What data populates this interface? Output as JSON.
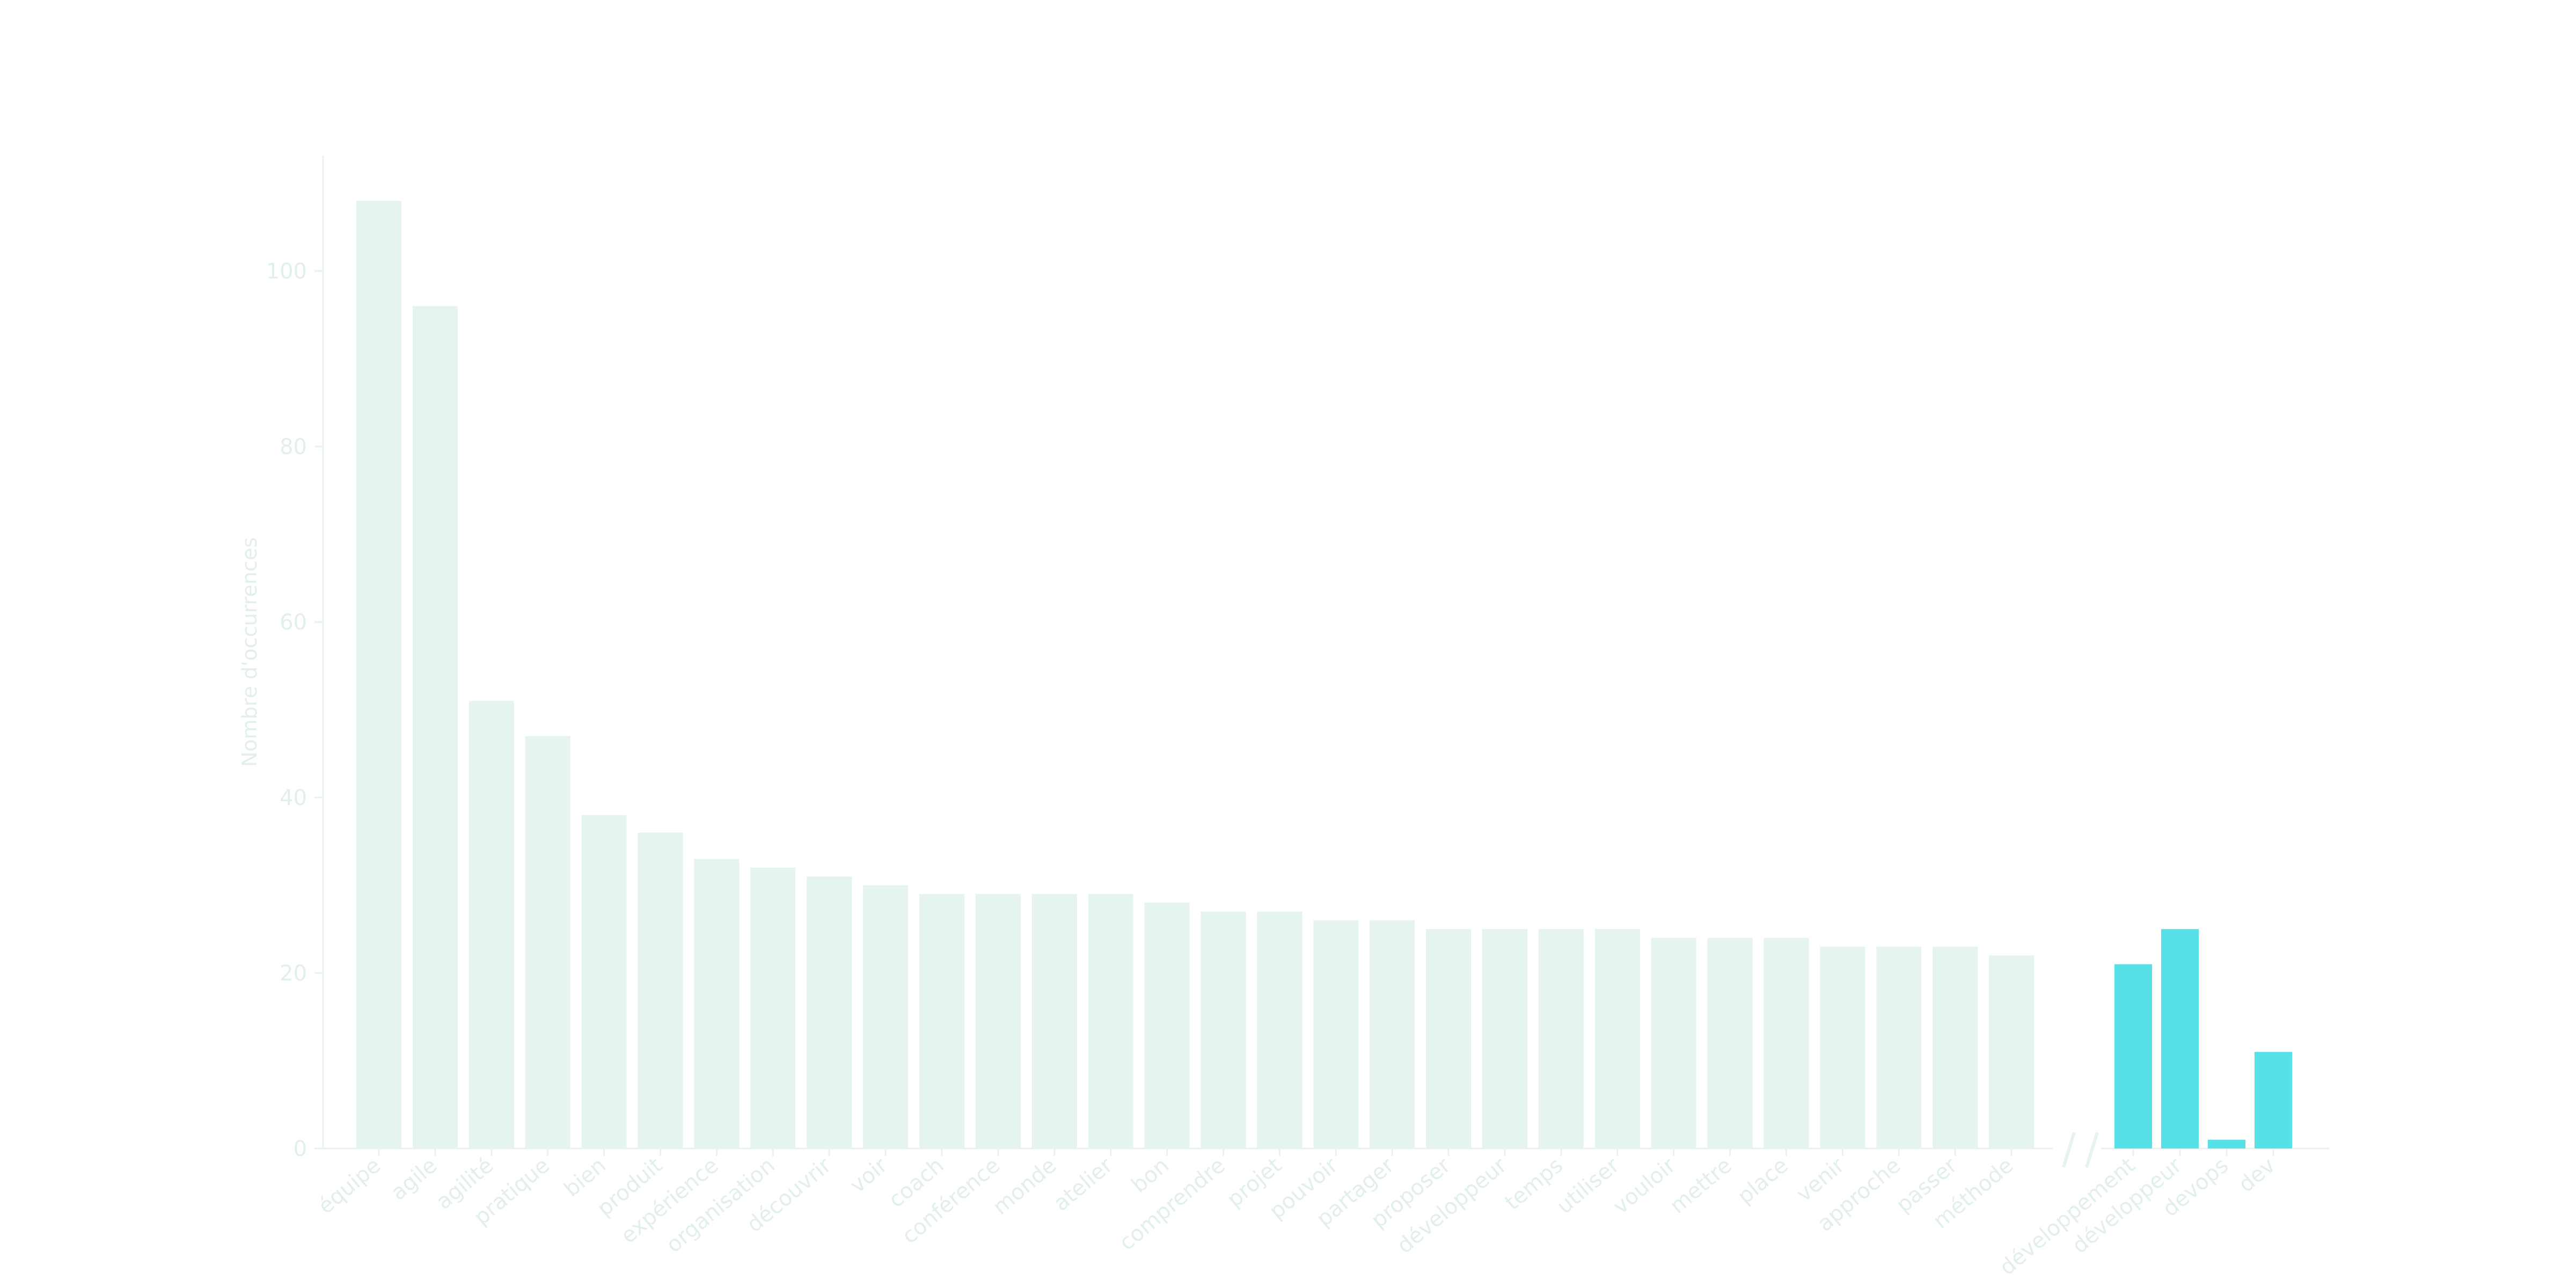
{
  "chart_data": {
    "type": "bar",
    "title": "",
    "xlabel": "",
    "ylabel": "Nombre d'occurrences",
    "ylim": [
      0,
      113
    ],
    "yticks": [
      0,
      20,
      40,
      60,
      80,
      100
    ],
    "grid": false,
    "axis_break": "between 'méthode' and 'développement'",
    "colors": {
      "main": "#e6f4f0",
      "highlight": "#56e1e6",
      "axis": "#e8f2f0",
      "text": "#e2efec"
    },
    "series": [
      {
        "categories": [
          "équipe",
          "agile",
          "agilité",
          "pratique",
          "bien",
          "produit",
          "expérience",
          "organisation",
          "découvrir",
          "voir",
          "coach",
          "conférence",
          "monde",
          "atelier",
          "bon",
          "comprendre",
          "projet",
          "pouvoir",
          "partager",
          "proposer",
          "développeur",
          "temps",
          "utiliser",
          "vouloir",
          "mettre",
          "place",
          "venir",
          "approche",
          "passer",
          "méthode"
        ],
        "values": [
          108,
          96,
          51,
          47,
          38,
          36,
          33,
          32,
          31,
          30,
          29,
          29,
          29,
          29,
          28,
          27,
          27,
          26,
          26,
          25,
          25,
          25,
          25,
          24,
          24,
          24,
          23,
          23,
          23,
          22
        ]
      },
      {
        "categories": [
          "développement",
          "développeur",
          "devops",
          "dev"
        ],
        "values": [
          21,
          25,
          1,
          11
        ]
      }
    ]
  }
}
